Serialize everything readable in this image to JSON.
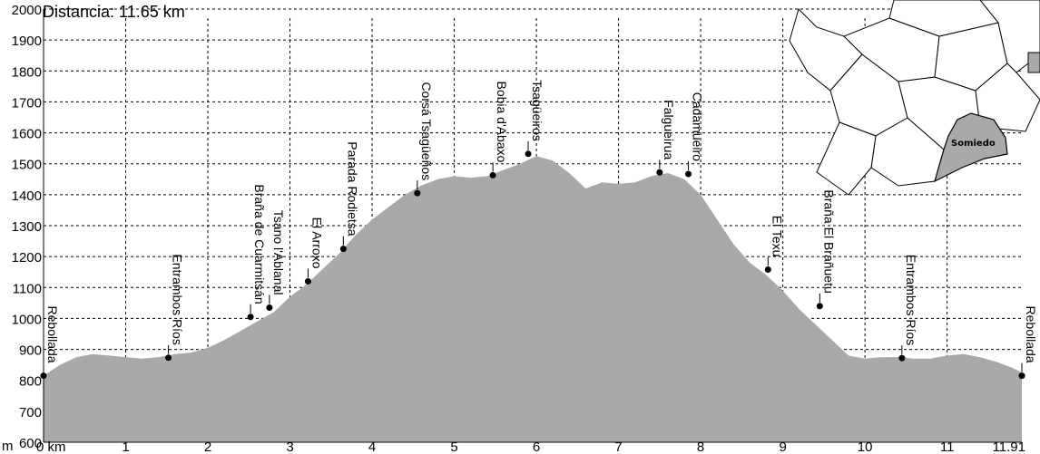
{
  "chart_data": {
    "type": "area",
    "title": "Distancia: 11.65 km",
    "y_unit": "m",
    "x_unit": "km",
    "ylim": [
      600,
      2000
    ],
    "xlim": [
      0,
      11.91
    ],
    "y_ticks": [
      600,
      700,
      800,
      900,
      1000,
      1100,
      1200,
      1300,
      1400,
      1500,
      1600,
      1700,
      1800,
      1900,
      2000
    ],
    "x_ticks": [
      "0",
      "1",
      "2",
      "3",
      "4",
      "5",
      "6",
      "7",
      "8",
      "9",
      "10",
      "11",
      "11.91"
    ],
    "grid": true,
    "profile": {
      "x": [
        0,
        0.2,
        0.4,
        0.6,
        0.8,
        1.0,
        1.2,
        1.4,
        1.6,
        1.8,
        2.0,
        2.2,
        2.4,
        2.6,
        2.8,
        3.0,
        3.2,
        3.4,
        3.6,
        3.8,
        4.0,
        4.2,
        4.4,
        4.6,
        4.8,
        5.0,
        5.2,
        5.4,
        5.6,
        5.8,
        6.0,
        6.2,
        6.4,
        6.6,
        6.8,
        7.0,
        7.2,
        7.4,
        7.6,
        7.8,
        8.0,
        8.2,
        8.4,
        8.6,
        8.8,
        9.0,
        9.2,
        9.4,
        9.6,
        9.8,
        10.0,
        10.2,
        10.4,
        10.6,
        10.8,
        11.0,
        11.2,
        11.4,
        11.6,
        11.8,
        11.91
      ],
      "y": [
        815,
        850,
        875,
        885,
        880,
        875,
        870,
        875,
        885,
        890,
        905,
        930,
        960,
        990,
        1020,
        1070,
        1110,
        1160,
        1210,
        1270,
        1320,
        1360,
        1400,
        1430,
        1450,
        1460,
        1455,
        1460,
        1480,
        1500,
        1525,
        1510,
        1470,
        1420,
        1440,
        1435,
        1440,
        1460,
        1470,
        1450,
        1400,
        1320,
        1240,
        1180,
        1140,
        1090,
        1030,
        980,
        930,
        880,
        870,
        875,
        875,
        870,
        870,
        880,
        885,
        875,
        860,
        840,
        825
      ]
    },
    "waypoints": [
      {
        "name": "Rebollada",
        "x": 0.0,
        "y": 815
      },
      {
        "name": "Entrambos Ríos",
        "x": 1.52,
        "y": 873
      },
      {
        "name": "Braña de Cuarmitsán",
        "x": 2.52,
        "y": 1005
      },
      {
        "name": "Tsano l'Ablanal",
        "x": 2.75,
        "y": 1035
      },
      {
        "name": "El Arroxo",
        "x": 3.22,
        "y": 1120
      },
      {
        "name": "Parada Rodietsa",
        "x": 3.65,
        "y": 1225
      },
      {
        "name": "Corsá Tsagüeños",
        "x": 4.55,
        "y": 1405
      },
      {
        "name": "Bobia d'Abaxo",
        "x": 5.47,
        "y": 1463
      },
      {
        "name": "Tsagüeiros",
        "x": 5.9,
        "y": 1532
      },
      {
        "name": "Falgueirua",
        "x": 7.5,
        "y": 1472
      },
      {
        "name": "Cadamueiro",
        "x": 7.85,
        "y": 1467
      },
      {
        "name": "El Texu",
        "x": 8.82,
        "y": 1158
      },
      {
        "name": "Braña El Brañuetu",
        "x": 9.45,
        "y": 1040
      },
      {
        "name": "Entrambos Ríos",
        "x": 10.45,
        "y": 872
      },
      {
        "name": "Rebollada",
        "x": 11.91,
        "y": 815
      }
    ]
  },
  "inset_map": {
    "highlight_label": "Somiedo",
    "region_color": "#ffffff",
    "highlight_color": "#a9a9a9"
  },
  "colors": {
    "area_fill": "#a9a9a9",
    "point": "#000000"
  }
}
